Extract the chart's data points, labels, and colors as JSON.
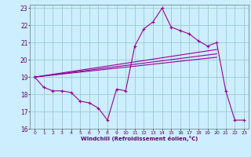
{
  "xlabel": "Windchill (Refroidissement éolien,°C)",
  "xlim": [
    -0.5,
    23.5
  ],
  "ylim": [
    16,
    23.2
  ],
  "yticks": [
    16,
    17,
    18,
    19,
    20,
    21,
    22,
    23
  ],
  "xticks": [
    0,
    1,
    2,
    3,
    4,
    5,
    6,
    7,
    8,
    9,
    10,
    11,
    12,
    13,
    14,
    15,
    16,
    17,
    18,
    19,
    20,
    21,
    22,
    23
  ],
  "bg_color": "#cceeff",
  "line_color": "#990099",
  "grid_color": "#99cccc",
  "series": {
    "main": {
      "x": [
        0,
        1,
        2,
        3,
        4,
        5,
        6,
        7,
        8,
        9,
        10,
        11,
        12,
        13,
        14,
        15,
        16,
        17,
        18,
        19,
        20,
        21,
        22,
        23
      ],
      "y": [
        19.0,
        18.4,
        18.2,
        18.2,
        18.1,
        17.6,
        17.5,
        17.2,
        16.5,
        18.3,
        18.2,
        20.8,
        21.8,
        22.2,
        23.0,
        21.9,
        21.7,
        21.5,
        21.1,
        20.8,
        21.0,
        18.2,
        16.5,
        16.5
      ]
    },
    "diag1": {
      "x": [
        0,
        20
      ],
      "y": [
        19.0,
        20.6
      ]
    },
    "diag2": {
      "x": [
        0,
        20
      ],
      "y": [
        19.0,
        20.35
      ]
    },
    "diag3": {
      "x": [
        0,
        20
      ],
      "y": [
        19.0,
        20.15
      ]
    }
  }
}
